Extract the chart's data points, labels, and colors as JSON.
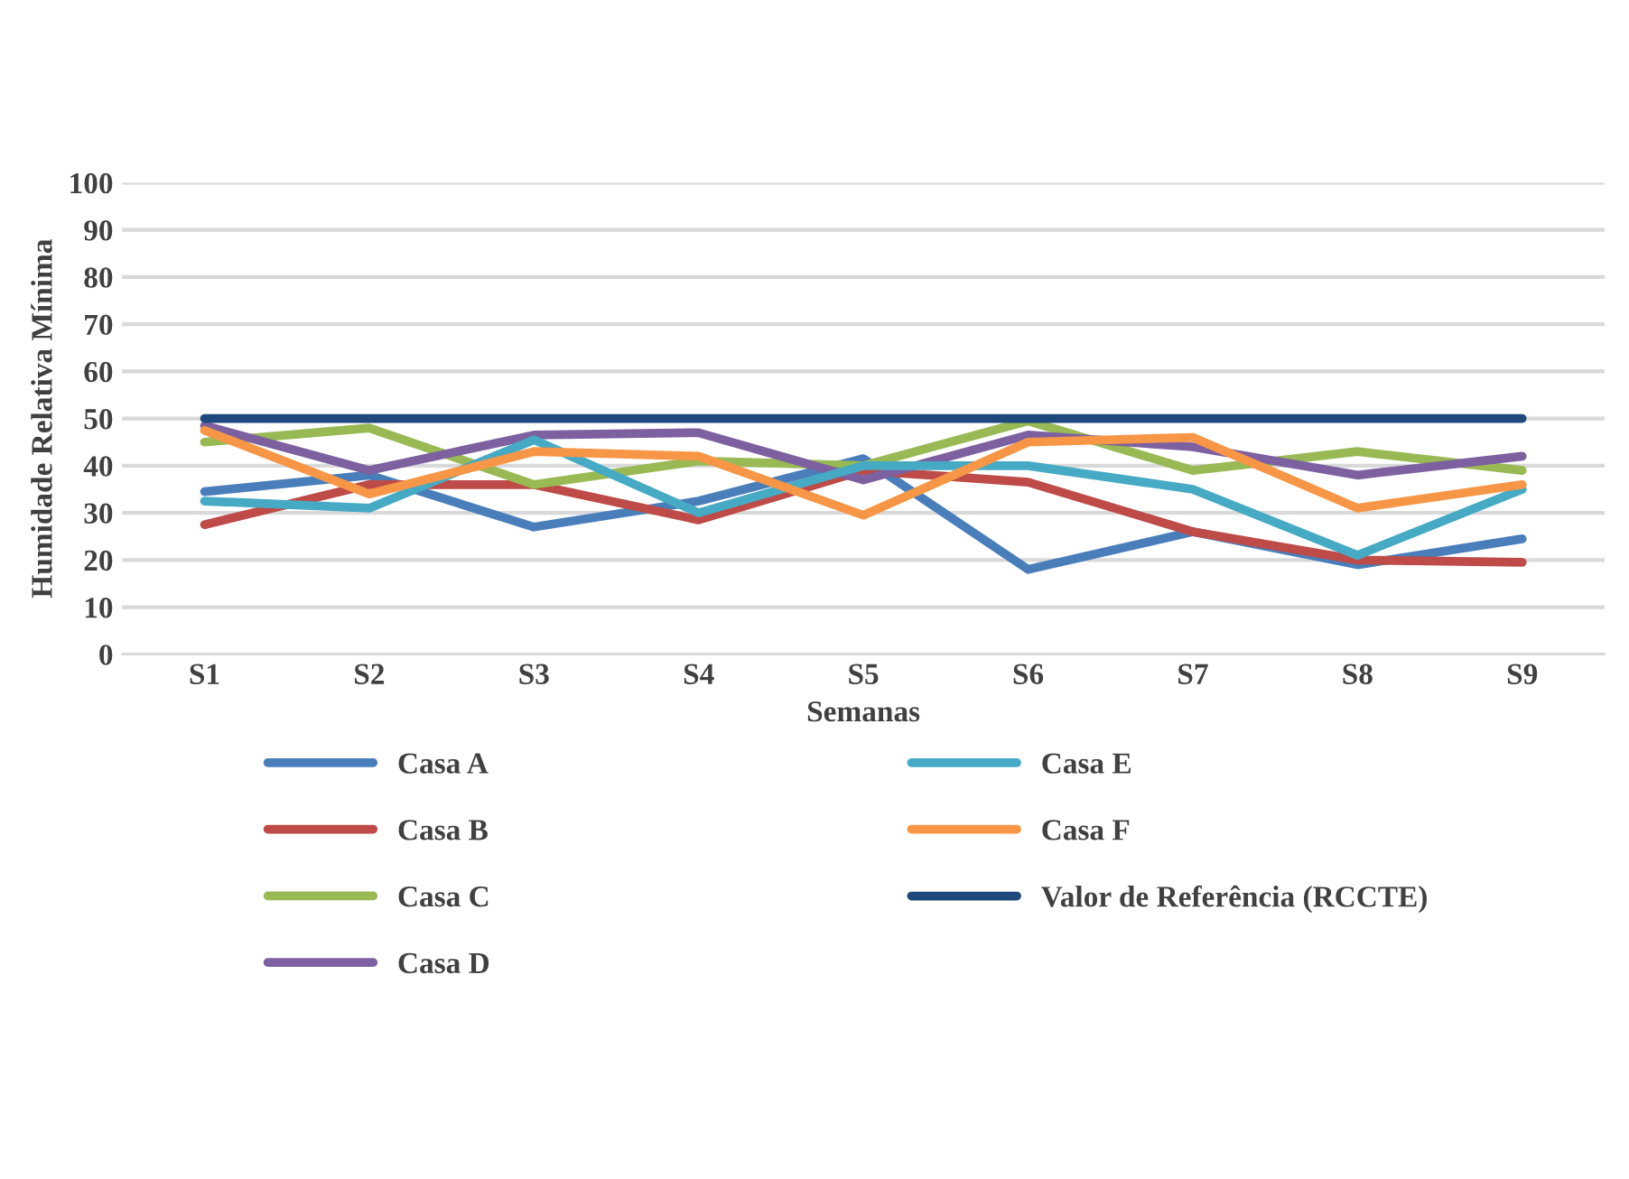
{
  "chart_data": {
    "type": "line",
    "xlabel": "Semanas",
    "ylabel": "Humidade Relativa Mínima",
    "categories": [
      "S1",
      "S2",
      "S3",
      "S4",
      "S5",
      "S6",
      "S7",
      "S8",
      "S9"
    ],
    "series": [
      {
        "name": "Casa A",
        "color": "#4a7ebb",
        "values": [
          34.5,
          38,
          27,
          32.5,
          41.5,
          18,
          26,
          19,
          24.5
        ]
      },
      {
        "name": "Casa B",
        "color": "#be4b48",
        "values": [
          27.5,
          36,
          36,
          28.5,
          39,
          36.5,
          26,
          20,
          19.5
        ]
      },
      {
        "name": "Casa C",
        "color": "#98b954",
        "values": [
          45,
          48,
          36,
          41,
          40,
          49.5,
          39,
          43,
          39
        ]
      },
      {
        "name": "Casa D",
        "color": "#7d60a0",
        "values": [
          48.5,
          39,
          46.5,
          47,
          37,
          46.5,
          44,
          38,
          42
        ]
      },
      {
        "name": "Casa E",
        "color": "#46aac5",
        "values": [
          32.5,
          31,
          45.5,
          30,
          40,
          40,
          35,
          21,
          35
        ]
      },
      {
        "name": "Casa F",
        "color": "#f79646",
        "values": [
          47.5,
          34,
          43,
          42,
          29.5,
          45,
          46,
          31,
          36
        ]
      },
      {
        "name": "Valor de Referência (RCCTE)",
        "color": "#1f497d",
        "values": [
          50,
          50,
          50,
          50,
          50,
          50,
          50,
          50,
          50
        ]
      }
    ],
    "ylim": [
      0,
      100
    ],
    "yticks": [
      0,
      10,
      20,
      30,
      40,
      50,
      60,
      70,
      80,
      90,
      100
    ],
    "grid": "y",
    "legend": "bottom",
    "marker": "none",
    "line_style": "solid"
  }
}
